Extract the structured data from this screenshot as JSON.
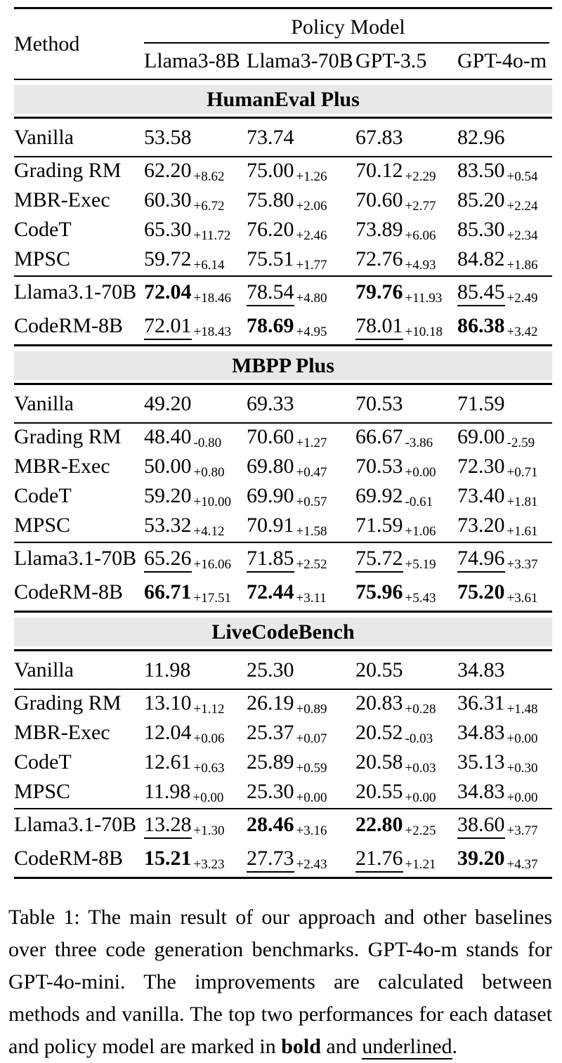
{
  "table": {
    "method_header": "Method",
    "policy_model_header": "Policy Model",
    "columns": [
      "Llama3-8B",
      "Llama3-70B",
      "GPT-3.5",
      "GPT-4o-m"
    ],
    "section_header_bg": "#e8e8e8",
    "sections": [
      {
        "title": "HumanEval Plus",
        "vanilla": {
          "method": "Vanilla",
          "values": [
            "53.58",
            "73.74",
            "67.83",
            "82.96"
          ]
        },
        "baselines": [
          {
            "method": "Grading RM",
            "cells": [
              {
                "v": "62.20",
                "d": "+8.62"
              },
              {
                "v": "75.00",
                "d": "+1.26"
              },
              {
                "v": "70.12",
                "d": "+2.29"
              },
              {
                "v": "83.50",
                "d": "+0.54"
              }
            ]
          },
          {
            "method": "MBR-Exec",
            "cells": [
              {
                "v": "60.30",
                "d": "+6.72"
              },
              {
                "v": "75.80",
                "d": "+2.06"
              },
              {
                "v": "70.60",
                "d": "+2.77"
              },
              {
                "v": "85.20",
                "d": "+2.24"
              }
            ]
          },
          {
            "method": "CodeT",
            "cells": [
              {
                "v": "65.30",
                "d": "+11.72"
              },
              {
                "v": "76.20",
                "d": "+2.46"
              },
              {
                "v": "73.89",
                "d": "+6.06"
              },
              {
                "v": "85.30",
                "d": "+2.34"
              }
            ]
          },
          {
            "method": "MPSC",
            "cells": [
              {
                "v": "59.72",
                "d": "+6.14"
              },
              {
                "v": "75.51",
                "d": "+1.77"
              },
              {
                "v": "72.76",
                "d": "+4.93"
              },
              {
                "v": "84.82",
                "d": "+1.86"
              }
            ]
          }
        ],
        "ours": [
          {
            "method": "Llama3.1-70B",
            "cells": [
              {
                "v": "72.04",
                "d": "+18.46",
                "s": "bold"
              },
              {
                "v": "78.54",
                "d": "+4.80",
                "s": "underline"
              },
              {
                "v": "79.76",
                "d": "+11.93",
                "s": "bold"
              },
              {
                "v": "85.45",
                "d": "+2.49",
                "s": "underline"
              }
            ]
          },
          {
            "method": "CodeRM-8B",
            "cells": [
              {
                "v": "72.01",
                "d": "+18.43",
                "s": "underline"
              },
              {
                "v": "78.69",
                "d": "+4.95",
                "s": "bold"
              },
              {
                "v": "78.01",
                "d": "+10.18",
                "s": "underline"
              },
              {
                "v": "86.38",
                "d": "+3.42",
                "s": "bold"
              }
            ]
          }
        ]
      },
      {
        "title": "MBPP Plus",
        "vanilla": {
          "method": "Vanilla",
          "values": [
            "49.20",
            "69.33",
            "70.53",
            "71.59"
          ]
        },
        "baselines": [
          {
            "method": "Grading RM",
            "cells": [
              {
                "v": "48.40",
                "d": "-0.80"
              },
              {
                "v": "70.60",
                "d": "+1.27"
              },
              {
                "v": "66.67",
                "d": "-3.86"
              },
              {
                "v": "69.00",
                "d": "-2.59"
              }
            ]
          },
          {
            "method": "MBR-Exec",
            "cells": [
              {
                "v": "50.00",
                "d": "+0.80"
              },
              {
                "v": "69.80",
                "d": "+0.47"
              },
              {
                "v": "70.53",
                "d": "+0.00"
              },
              {
                "v": "72.30",
                "d": "+0.71"
              }
            ]
          },
          {
            "method": "CodeT",
            "cells": [
              {
                "v": "59.20",
                "d": "+10.00"
              },
              {
                "v": "69.90",
                "d": "+0.57"
              },
              {
                "v": "69.92",
                "d": "-0.61"
              },
              {
                "v": "73.40",
                "d": "+1.81"
              }
            ]
          },
          {
            "method": "MPSC",
            "cells": [
              {
                "v": "53.32",
                "d": "+4.12"
              },
              {
                "v": "70.91",
                "d": "+1.58"
              },
              {
                "v": "71.59",
                "d": "+1.06"
              },
              {
                "v": "73.20",
                "d": "+1.61"
              }
            ]
          }
        ],
        "ours": [
          {
            "method": "Llama3.1-70B",
            "cells": [
              {
                "v": "65.26",
                "d": "+16.06",
                "s": "underline"
              },
              {
                "v": "71.85",
                "d": "+2.52",
                "s": "underline"
              },
              {
                "v": "75.72",
                "d": "+5.19",
                "s": "underline"
              },
              {
                "v": "74.96",
                "d": "+3.37",
                "s": "underline"
              }
            ]
          },
          {
            "method": "CodeRM-8B",
            "cells": [
              {
                "v": "66.71",
                "d": "+17.51",
                "s": "bold"
              },
              {
                "v": "72.44",
                "d": "+3.11",
                "s": "bold"
              },
              {
                "v": "75.96",
                "d": "+5.43",
                "s": "bold"
              },
              {
                "v": "75.20",
                "d": "+3.61",
                "s": "bold"
              }
            ]
          }
        ]
      },
      {
        "title": "LiveCodeBench",
        "vanilla": {
          "method": "Vanilla",
          "values": [
            "11.98",
            "25.30",
            "20.55",
            "34.83"
          ]
        },
        "baselines": [
          {
            "method": "Grading RM",
            "cells": [
              {
                "v": "13.10",
                "d": "+1.12"
              },
              {
                "v": "26.19",
                "d": "+0.89"
              },
              {
                "v": "20.83",
                "d": "+0.28"
              },
              {
                "v": "36.31",
                "d": "+1.48"
              }
            ]
          },
          {
            "method": "MBR-Exec",
            "cells": [
              {
                "v": "12.04",
                "d": "+0.06"
              },
              {
                "v": "25.37",
                "d": "+0.07"
              },
              {
                "v": "20.52",
                "d": "-0.03"
              },
              {
                "v": "34.83",
                "d": "+0.00"
              }
            ]
          },
          {
            "method": "CodeT",
            "cells": [
              {
                "v": "12.61",
                "d": "+0.63"
              },
              {
                "v": "25.89",
                "d": "+0.59"
              },
              {
                "v": "20.58",
                "d": "+0.03"
              },
              {
                "v": "35.13",
                "d": "+0.30"
              }
            ]
          },
          {
            "method": "MPSC",
            "cells": [
              {
                "v": "11.98",
                "d": "+0.00"
              },
              {
                "v": "25.30",
                "d": "+0.00"
              },
              {
                "v": "20.55",
                "d": "+0.00"
              },
              {
                "v": "34.83",
                "d": "+0.00"
              }
            ]
          }
        ],
        "ours": [
          {
            "method": "Llama3.1-70B",
            "cells": [
              {
                "v": "13.28",
                "d": "+1.30",
                "s": "underline"
              },
              {
                "v": "28.46",
                "d": "+3.16",
                "s": "bold"
              },
              {
                "v": "22.80",
                "d": "+2.25",
                "s": "bold"
              },
              {
                "v": "38.60",
                "d": "+3.77",
                "s": "underline"
              }
            ]
          },
          {
            "method": "CodeRM-8B",
            "cells": [
              {
                "v": "15.21",
                "d": "+3.23",
                "s": "bold"
              },
              {
                "v": "27.73",
                "d": "+2.43",
                "s": "underline"
              },
              {
                "v": "21.76",
                "d": "+1.21",
                "s": "underline"
              },
              {
                "v": "39.20",
                "d": "+4.37",
                "s": "bold"
              }
            ]
          }
        ]
      }
    ]
  },
  "caption": {
    "segments": [
      {
        "text": "Table 1: The main result of our approach and other baselines over three code generation benchmarks. GPT-4o-m stands for GPT-4o-mini. The improvements are calculated between methods and vanilla. The top two performances for each dataset and policy model are marked in "
      },
      {
        "text": "bold",
        "style": "bold"
      },
      {
        "text": " and "
      },
      {
        "text": "underlined",
        "style": "underline"
      },
      {
        "text": "."
      }
    ]
  }
}
